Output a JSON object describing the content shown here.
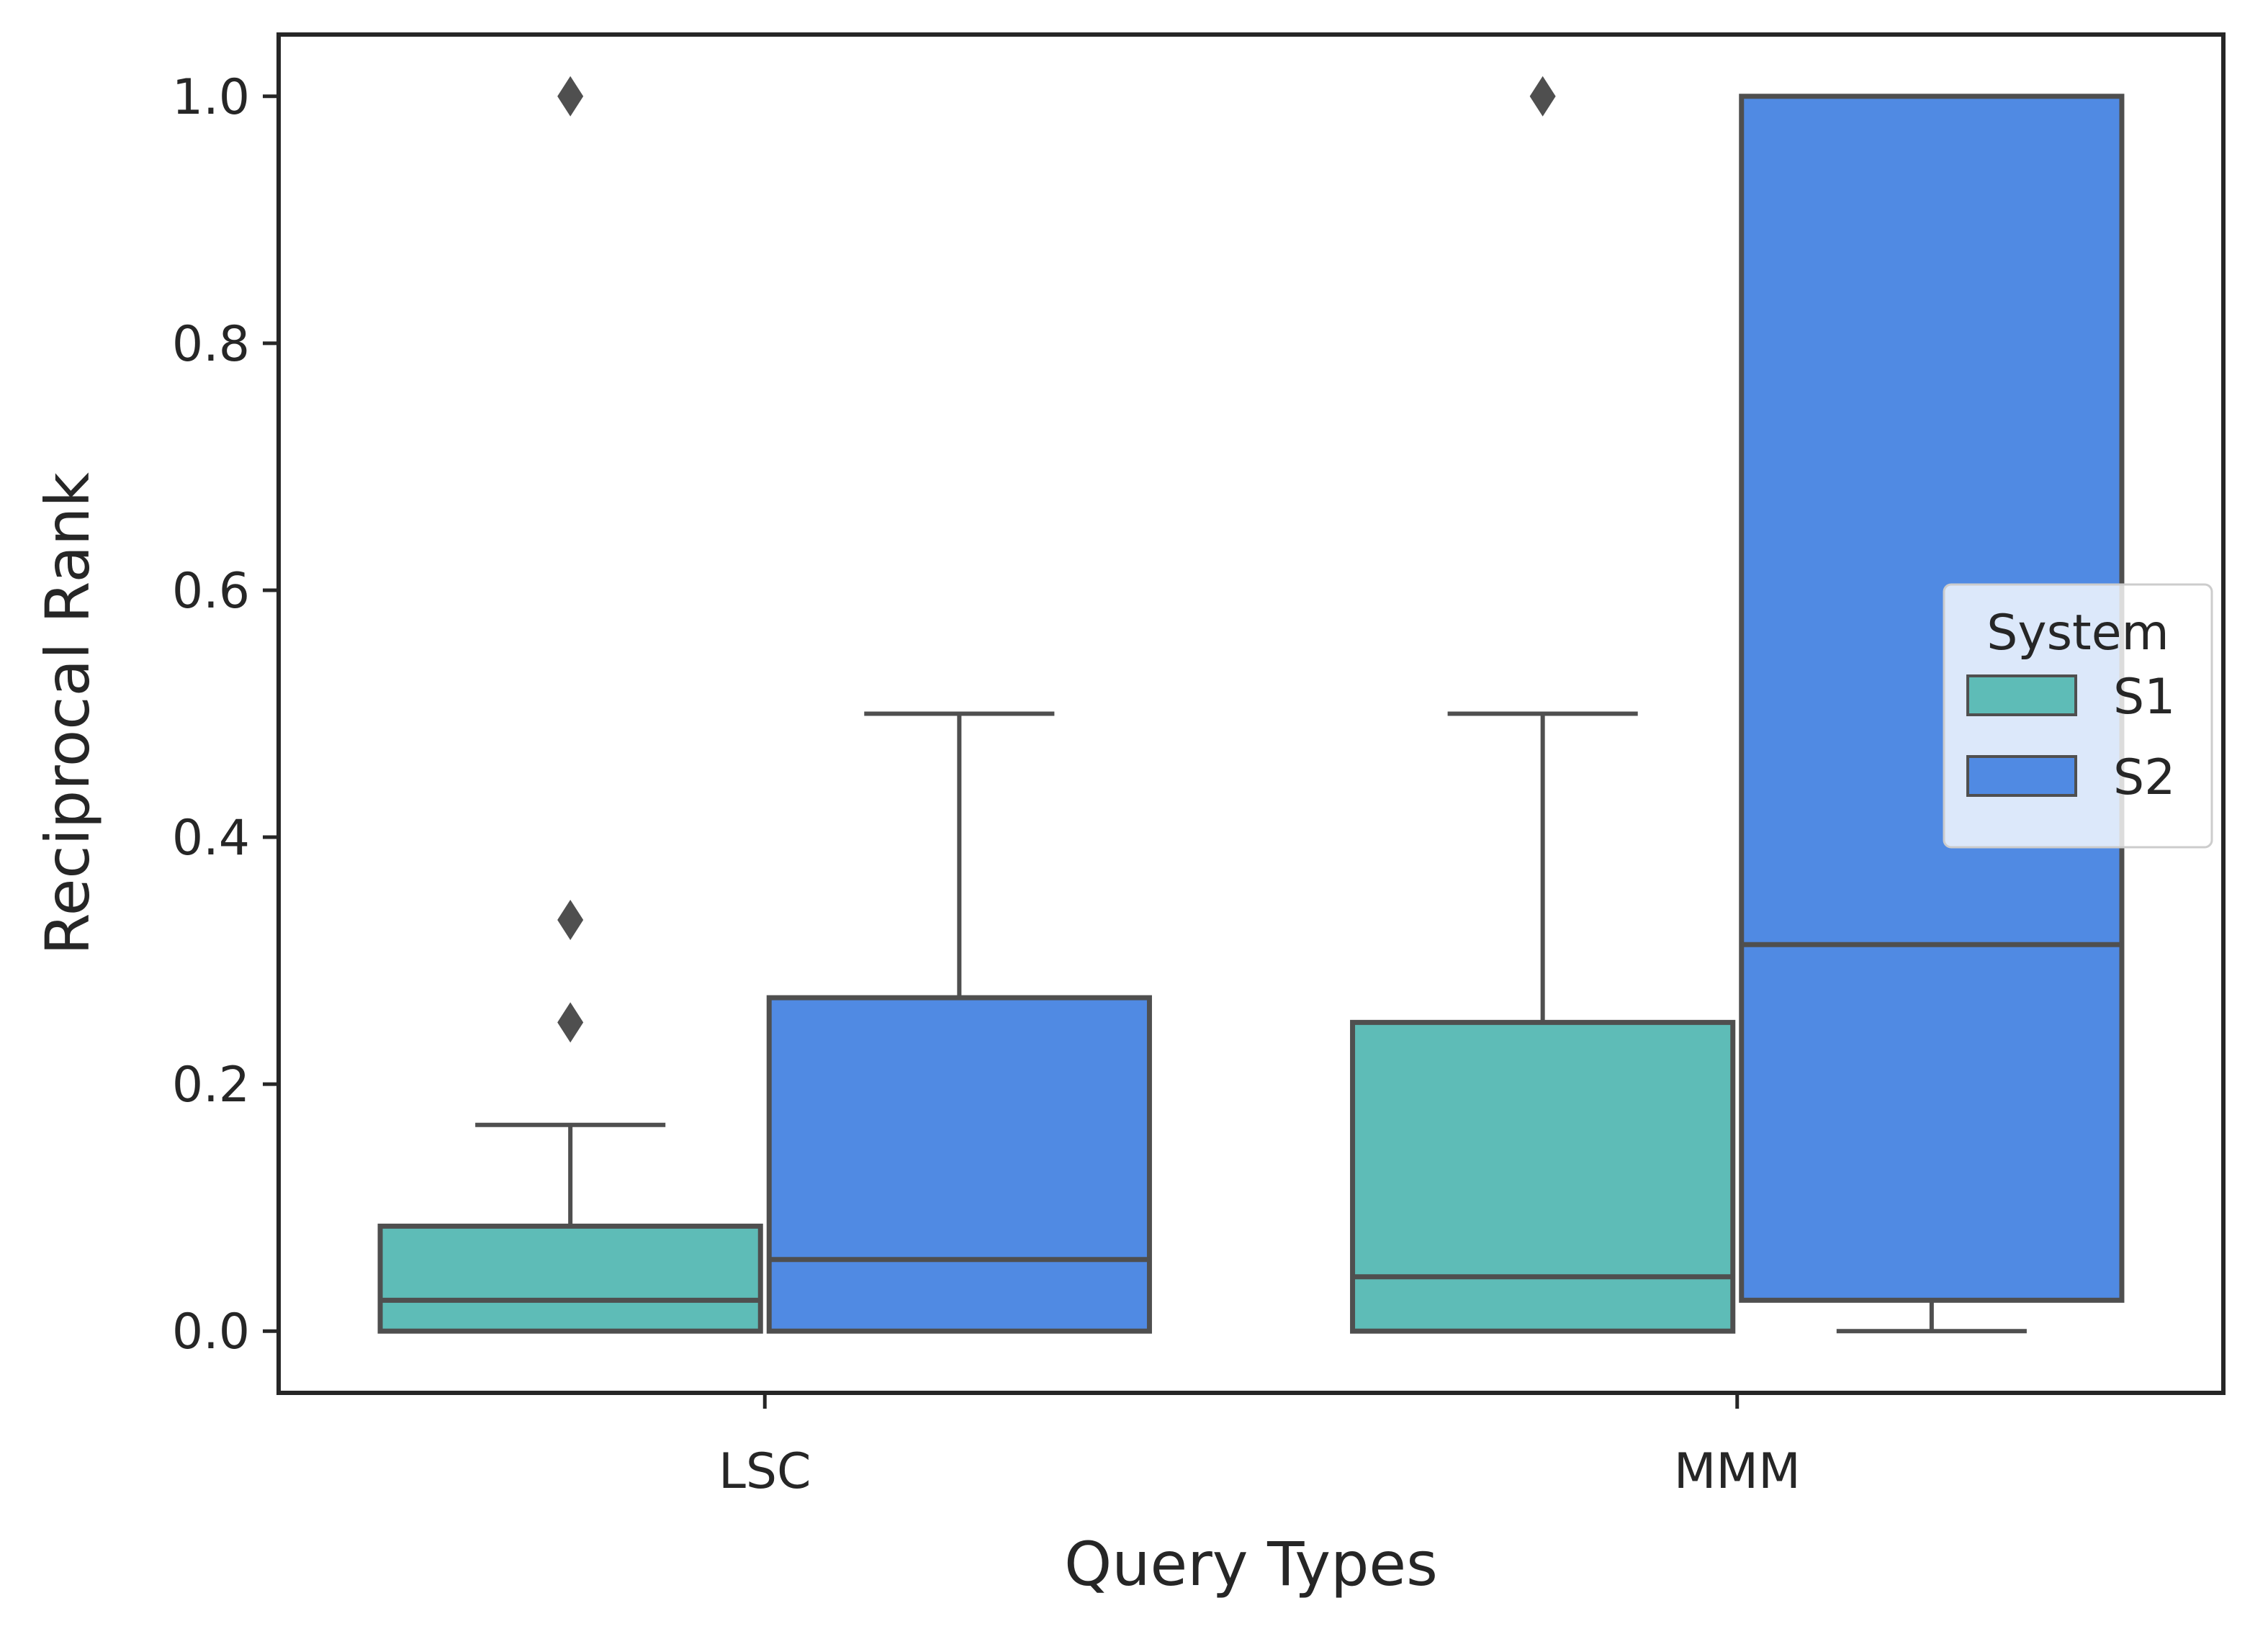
{
  "chart_data": {
    "type": "boxplot",
    "xlabel": "Query Types",
    "ylabel": "Reciprocal Rank",
    "ylim": [
      -0.05,
      1.05
    ],
    "yticks": [
      "0.0",
      "0.2",
      "0.4",
      "0.6",
      "0.8",
      "1.0"
    ],
    "categories": [
      "LSC",
      "MMM"
    ],
    "legend": {
      "title": "System",
      "position": "center-right"
    },
    "series": [
      {
        "name": "S1",
        "color": "#5ebcb7",
        "boxes": [
          {
            "category": "LSC",
            "whisker_low": 0.0,
            "q1": 0.0,
            "median": 0.025,
            "q3": 0.085,
            "whisker_high": 0.167,
            "outliers": [
              0.25,
              0.333,
              1.0
            ]
          },
          {
            "category": "MMM",
            "whisker_low": 0.0,
            "q1": 0.0,
            "median": 0.044,
            "q3": 0.25,
            "whisker_high": 0.5,
            "outliers": [
              1.0
            ]
          }
        ]
      },
      {
        "name": "S2",
        "color": "#508ae3",
        "boxes": [
          {
            "category": "LSC",
            "whisker_low": 0.0,
            "q1": 0.0,
            "median": 0.058,
            "q3": 0.27,
            "whisker_high": 0.5,
            "outliers": []
          },
          {
            "category": "MMM",
            "whisker_low": 0.0,
            "q1": 0.025,
            "median": 0.313,
            "q3": 1.0,
            "whisker_high": 1.0,
            "outliers": []
          }
        ]
      }
    ]
  }
}
